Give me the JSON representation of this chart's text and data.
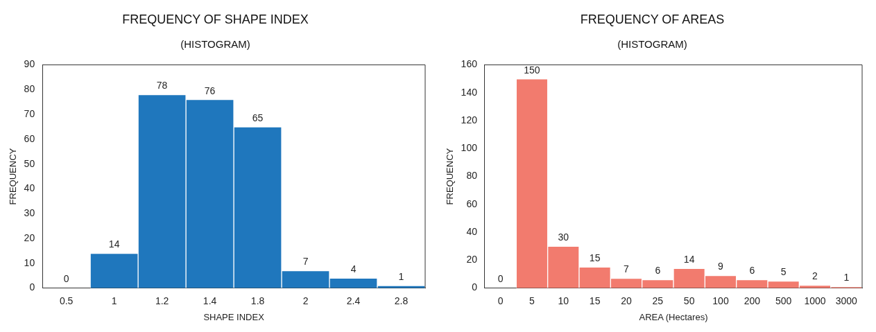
{
  "chart_data": [
    {
      "type": "bar",
      "title": "FREQUENCY OF SHAPE INDEX",
      "subtitle": "(HISTOGRAM)",
      "xlabel": "SHAPE INDEX",
      "ylabel": "FREQUENCY",
      "categories": [
        "0.5",
        "1",
        "1.2",
        "1.4",
        "1.8",
        "2",
        "2.4",
        "2.8"
      ],
      "values": [
        0,
        14,
        78,
        76,
        65,
        7,
        4,
        1
      ],
      "color": "#1f77bd",
      "ylim": [
        0,
        90
      ],
      "yticks": [
        0,
        10,
        20,
        30,
        40,
        50,
        60,
        70,
        80,
        90
      ],
      "grid": false,
      "legend": false,
      "data_labels": true
    },
    {
      "type": "bar",
      "title": "FREQUENCY OF AREAS",
      "subtitle": "(HISTOGRAM)",
      "xlabel": "AREA (Hectares)",
      "ylabel": "FREQUENCY",
      "categories": [
        "0",
        "5",
        "10",
        "15",
        "20",
        "25",
        "50",
        "100",
        "200",
        "500",
        "1000",
        "3000"
      ],
      "values": [
        0,
        150,
        30,
        15,
        7,
        6,
        14,
        9,
        6,
        5,
        2,
        1
      ],
      "color": "#f27b6e",
      "ylim": [
        0,
        160
      ],
      "yticks": [
        0,
        20,
        40,
        60,
        80,
        100,
        120,
        140,
        160
      ],
      "grid": false,
      "legend": false,
      "data_labels": true
    }
  ]
}
